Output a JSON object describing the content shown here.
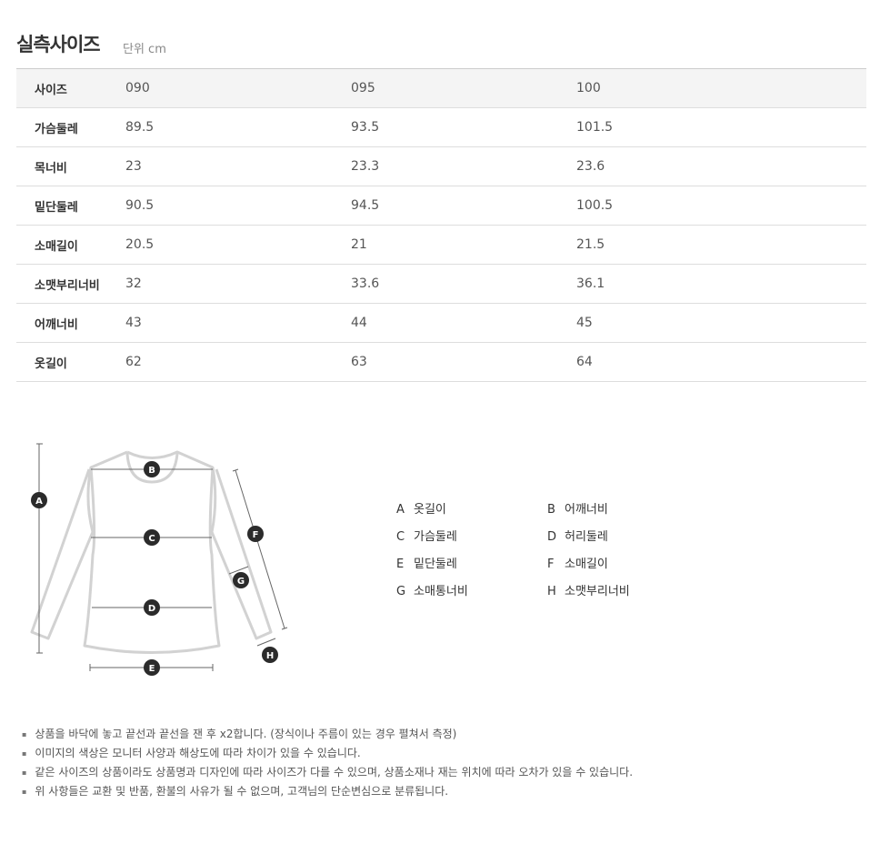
{
  "header": {
    "title": "실측사이즈",
    "unit": "단위 cm"
  },
  "table": {
    "header": {
      "label": "사이즈",
      "values": [
        "090",
        "095",
        "100"
      ]
    },
    "rows": [
      {
        "label": "가슴둘레",
        "values": [
          "89.5",
          "93.5",
          "101.5"
        ]
      },
      {
        "label": "목너비",
        "values": [
          "23",
          "23.3",
          "23.6"
        ]
      },
      {
        "label": "밑단둘레",
        "values": [
          "90.5",
          "94.5",
          "100.5"
        ]
      },
      {
        "label": "소매길이",
        "values": [
          "20.5",
          "21",
          "21.5"
        ]
      },
      {
        "label": "소맷부리너비",
        "values": [
          "32",
          "33.6",
          "36.1"
        ]
      },
      {
        "label": "어깨너비",
        "values": [
          "43",
          "44",
          "45"
        ]
      },
      {
        "label": "옷길이",
        "values": [
          "62",
          "63",
          "64"
        ]
      }
    ]
  },
  "diagram": {
    "markers": [
      "A",
      "B",
      "C",
      "D",
      "E",
      "F",
      "G",
      "H"
    ]
  },
  "legend": [
    {
      "key": "A",
      "label": "옷길이"
    },
    {
      "key": "B",
      "label": "어깨너비"
    },
    {
      "key": "C",
      "label": "가슴둘레"
    },
    {
      "key": "D",
      "label": "허리둘레"
    },
    {
      "key": "E",
      "label": "밑단둘레"
    },
    {
      "key": "F",
      "label": "소매길이"
    },
    {
      "key": "G",
      "label": "소매통너비"
    },
    {
      "key": "H",
      "label": "소맷부리너비"
    }
  ],
  "notes": [
    "상품을 바닥에 놓고 끝선과 끝선을 잰 후 x2합니다. (장식이나 주름이 있는 경우 펼쳐서 측정)",
    "이미지의 색상은 모니터 사양과 해상도에 따라 차이가 있을 수 있습니다.",
    "같은 사이즈의 상품이라도 상품명과 디자인에 따라 사이즈가 다를 수 있으며, 상품소재나 재는 위치에 따라 오차가 있을 수 있습니다.",
    "위 사항들은 교환 및 반품, 환불의 사유가 될 수 없으며, 고객님의 단순변심으로 분류됩니다."
  ]
}
